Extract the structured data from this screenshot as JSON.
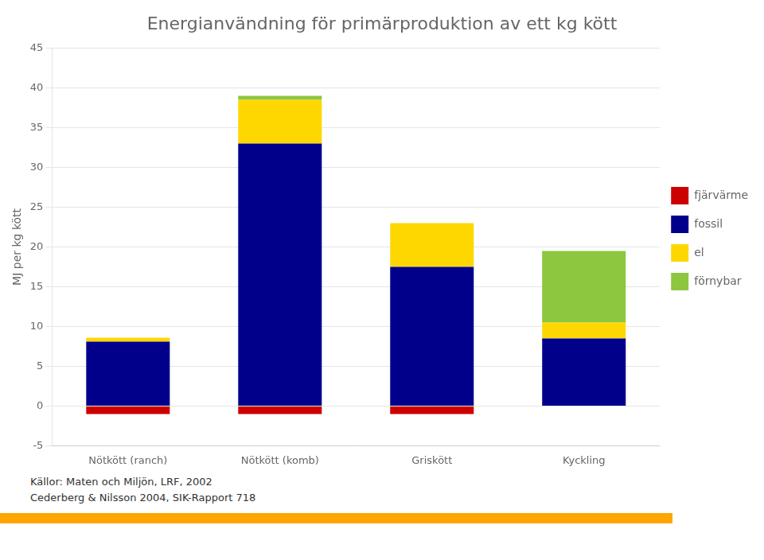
{
  "chart_data": {
    "type": "bar",
    "stacked": true,
    "title": "Energianvändning för primärproduktion av ett kg kött",
    "y_label": "MJ per kg kött",
    "categories": [
      "Nötkött (ranch)",
      "Nötkött (komb)",
      "Griskött",
      "Kyckling"
    ],
    "series": [
      {
        "name": "fjärvärme",
        "color": "#CC0000",
        "values": [
          -1.0,
          -1.0,
          -1.0,
          0.0
        ]
      },
      {
        "name": "fossil",
        "color": "#00008B",
        "values": [
          8.1,
          33.0,
          17.5,
          8.5
        ]
      },
      {
        "name": "el",
        "color": "#FFD700",
        "values": [
          0.5,
          5.5,
          5.5,
          2.0
        ]
      },
      {
        "name": "förnybar",
        "color": "#8DC63F",
        "values": [
          0.0,
          0.5,
          0.0,
          9.0
        ]
      }
    ],
    "ylim": [
      -5,
      45
    ],
    "yticks": [
      -5,
      0,
      5,
      10,
      15,
      20,
      25,
      30,
      35,
      40,
      45
    ],
    "grid": true,
    "legend": "right",
    "annotations": [
      "Källor: Maten och Miljön, LRF, 2002",
      "Cederberg & Nilsson 2004, SIK-Rapport 718"
    ]
  }
}
